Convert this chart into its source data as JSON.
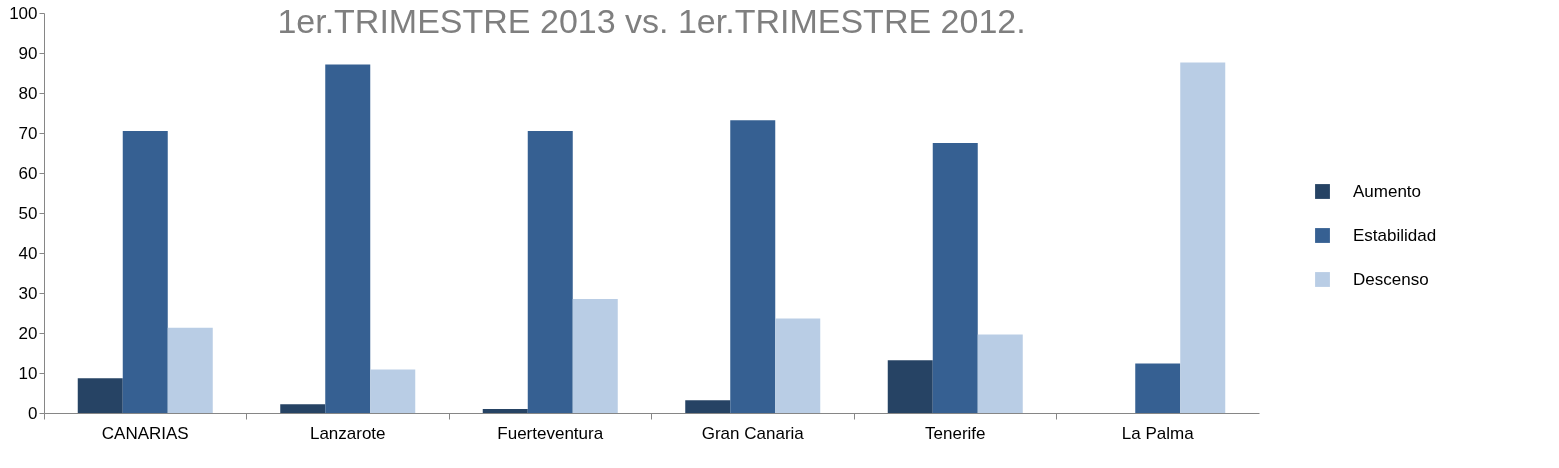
{
  "chart_data": {
    "type": "bar",
    "title": "1er.TRIMESTRE 2013 vs.  1er.TRIMESTRE 2012.",
    "categories": [
      "CANARIAS",
      "Lanzarote",
      "Fuerteventura",
      "Gran Canaria",
      "Tenerife",
      "La Palma"
    ],
    "series": [
      {
        "name": "Aumento",
        "color": "#264364",
        "values": [
          8.7,
          2.2,
          1.0,
          3.2,
          13.2,
          null
        ]
      },
      {
        "name": "Estabilidad",
        "color": "#366092",
        "values": [
          70.5,
          87.1,
          70.5,
          73.2,
          67.5,
          12.4
        ]
      },
      {
        "name": "Descenso",
        "color": "#b9cde5",
        "values": [
          21.3,
          10.9,
          28.5,
          23.6,
          19.6,
          87.6
        ]
      }
    ],
    "ylim": [
      0,
      100
    ],
    "yticks": [
      0,
      10,
      20,
      30,
      40,
      50,
      60,
      70,
      80,
      90,
      100
    ],
    "grid": false,
    "legend": "right"
  }
}
